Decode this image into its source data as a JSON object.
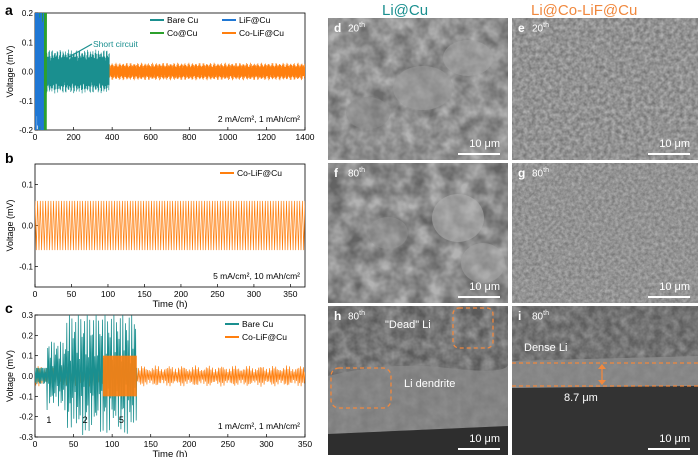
{
  "figure": {
    "colors": {
      "bare_cu": "#1a8f8f",
      "lif_cu": "#1f77d4",
      "co_cu": "#2ca02c",
      "co_lif_cu": "#ff7f0e",
      "annotation": "#1a8f8f",
      "sem_highlight": "#f0883e"
    }
  },
  "chart_data": [
    {
      "type": "line",
      "panel": "a",
      "xlabel": "",
      "ylabel": "Voltage (mV)",
      "xlim": [
        0,
        1400
      ],
      "ylim": [
        -0.2,
        0.2
      ],
      "xticks": [
        0,
        200,
        400,
        600,
        800,
        1000,
        1200,
        1400
      ],
      "yticks": [
        -0.2,
        -0.1,
        0.0,
        0.1,
        0.2
      ],
      "yticklabels": [
        "-0.2",
        "-0.1",
        "0.0",
        "0.1",
        "0.2"
      ],
      "legend": [
        "Bare Cu",
        "LiF@Cu",
        "Co@Cu",
        "Co-LiF@Cu"
      ],
      "annotation": "Short circuit",
      "condition": "2 mA/cm², 1 mAh/cm²",
      "series": [
        {
          "name": "Bare Cu",
          "x_end": 385,
          "amplitude": 0.05,
          "short_circuit_at": 50
        },
        {
          "name": "LiF@Cu",
          "x_end": 45,
          "amplitude": 0.2
        },
        {
          "name": "Co@Cu",
          "x_end": 60,
          "amplitude": 0.2
        },
        {
          "name": "Co-LiF@Cu",
          "x_end": 1400,
          "amplitude": 0.02
        }
      ]
    },
    {
      "type": "line",
      "panel": "b",
      "xlabel": "Time (h)",
      "ylabel": "Voltage (mV)",
      "xlim": [
        0,
        370
      ],
      "ylim": [
        -0.15,
        0.15
      ],
      "xticks": [
        0,
        50,
        100,
        150,
        200,
        250,
        300,
        350
      ],
      "yticks": [
        -0.1,
        0.0,
        0.1
      ],
      "yticklabels": [
        "-0.1",
        "0.0",
        "0.1"
      ],
      "legend": [
        "Co-LiF@Cu"
      ],
      "condition": "5 mA/cm², 10 mAh/cm²",
      "series": [
        {
          "name": "Co-LiF@Cu",
          "x_end": 370,
          "amplitude": 0.06
        }
      ]
    },
    {
      "type": "line",
      "panel": "c",
      "xlabel": "Time (h)",
      "ylabel": "Voltage (mV)",
      "xlim": [
        0,
        350
      ],
      "ylim": [
        -0.3,
        0.3
      ],
      "xticks": [
        0,
        50,
        100,
        150,
        200,
        250,
        300,
        350
      ],
      "yticks": [
        -0.3,
        -0.2,
        -0.1,
        0.0,
        0.1,
        0.2,
        0.3
      ],
      "yticklabels": [
        "-0.3",
        "-0.2",
        "-0.1",
        "0.0",
        "0.1",
        "0.2",
        "0.3"
      ],
      "legend": [
        "Bare Cu",
        "Co-LiF@Cu"
      ],
      "condition": "1 mA/cm², 1 mAh/cm²",
      "stage_labels": [
        {
          "text": "1",
          "x": 18
        },
        {
          "text": "2",
          "x": 65
        },
        {
          "text": "5",
          "x": 112
        }
      ],
      "series": [
        {
          "name": "Bare Cu",
          "x_end": 132
        },
        {
          "name": "Co-LiF@Cu",
          "x_end": 350
        }
      ]
    }
  ],
  "panels": {
    "a": "a",
    "b": "b",
    "c": "c"
  },
  "sem": {
    "header_left": "Li@Cu",
    "header_right": "Li@Co-LiF@Cu",
    "panels": [
      {
        "id": "d",
        "letter": "d",
        "cycle": "20",
        "sup": "th",
        "scale": "10 μm"
      },
      {
        "id": "e",
        "letter": "e",
        "cycle": "20",
        "sup": "th",
        "scale": "10 μm"
      },
      {
        "id": "f",
        "letter": "f",
        "cycle": "80",
        "sup": "th",
        "scale": "10 μm"
      },
      {
        "id": "g",
        "letter": "g",
        "cycle": "80",
        "sup": "th",
        "scale": "10 μm"
      },
      {
        "id": "h",
        "letter": "h",
        "cycle": "80",
        "sup": "th",
        "scale": "10 μm",
        "labels": [
          "\"Dead\" Li",
          "Li dendrite"
        ]
      },
      {
        "id": "i",
        "letter": "i",
        "cycle": "80",
        "sup": "th",
        "scale": "10 μm",
        "labels": [
          "Dense Li",
          "8.7 μm"
        ]
      }
    ]
  }
}
